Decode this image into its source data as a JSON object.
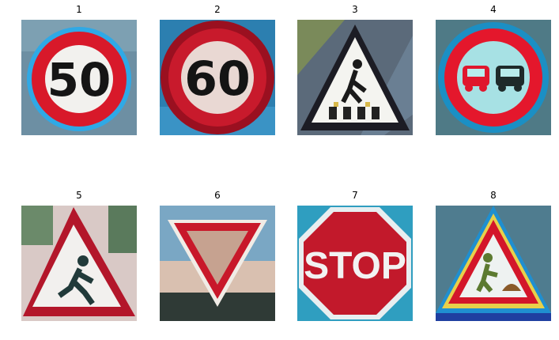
{
  "panels": [
    {
      "title": "1",
      "sign_text": "50",
      "sign_icon": "speed-limit-50-sign-icon",
      "bg": "#6d8fa3"
    },
    {
      "title": "2",
      "sign_text": "60",
      "sign_icon": "speed-limit-60-sign-icon",
      "bg": "#2c7fb0"
    },
    {
      "title": "3",
      "sign_text": "",
      "sign_icon": "pedestrian-crossing-sign-icon",
      "bg": "#5b6a7a"
    },
    {
      "title": "4",
      "sign_text": "",
      "sign_icon": "no-passing-sign-icon",
      "bg": "#4f7a86"
    },
    {
      "title": "5",
      "sign_text": "",
      "sign_icon": "children-crossing-sign-icon",
      "bg": "#d9c9c6"
    },
    {
      "title": "6",
      "sign_text": "",
      "sign_icon": "yield-sign-icon",
      "bg": "#7aa7c4"
    },
    {
      "title": "7",
      "sign_text": "STOP",
      "sign_icon": "stop-sign-icon",
      "bg": "#2f9ec0"
    },
    {
      "title": "8",
      "sign_text": "",
      "sign_icon": "road-work-sign-icon",
      "bg": "#4f7c8f"
    }
  ]
}
